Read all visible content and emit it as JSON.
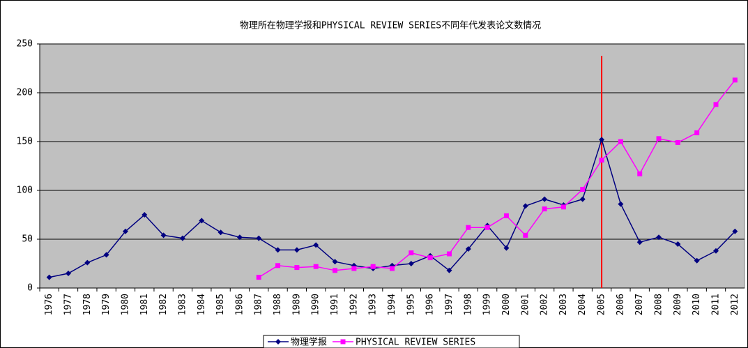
{
  "chart_data": {
    "type": "line",
    "title": "物理所在物理学报和PHYSICAL REVIEW SERIES不同年代发表论文数情况",
    "categories": [
      "1976",
      "1977",
      "1978",
      "1979",
      "1980",
      "1981",
      "1982",
      "1983",
      "1984",
      "1985",
      "1986",
      "1987",
      "1988",
      "1989",
      "1990",
      "1991",
      "1992",
      "1993",
      "1994",
      "1995",
      "1996",
      "1997",
      "1998",
      "1999",
      "2000",
      "2001",
      "2002",
      "2003",
      "2004",
      "2005",
      "2006",
      "2007",
      "2008",
      "2009",
      "2010",
      "2011",
      "2012"
    ],
    "series": [
      {
        "name": "物理学报",
        "color": "#000080",
        "marker": "diamond",
        "values": [
          11,
          15,
          26,
          34,
          58,
          75,
          54,
          51,
          69,
          57,
          52,
          51,
          39,
          39,
          44,
          27,
          23,
          20,
          23,
          25,
          33,
          18,
          40,
          64,
          41,
          84,
          91,
          85,
          91,
          152,
          86,
          47,
          52,
          45,
          28,
          38,
          58
        ]
      },
      {
        "name": "PHYSICAL REVIEW SERIES",
        "color": "#ff00ff",
        "marker": "square",
        "values": [
          null,
          null,
          null,
          null,
          null,
          null,
          null,
          null,
          null,
          null,
          null,
          11,
          23,
          21,
          22,
          18,
          20,
          22,
          20,
          36,
          31,
          35,
          62,
          62,
          74,
          54,
          81,
          83,
          101,
          131,
          150,
          117,
          153,
          149,
          159,
          188,
          213
        ]
      }
    ],
    "ylim": [
      0,
      250
    ],
    "yticks": [
      0,
      50,
      100,
      150,
      200,
      250
    ],
    "grid": true,
    "plot_background": "#c0c0c0",
    "legend": "bottom",
    "reference_line": {
      "x": "2005",
      "color": "#ff0000"
    }
  }
}
